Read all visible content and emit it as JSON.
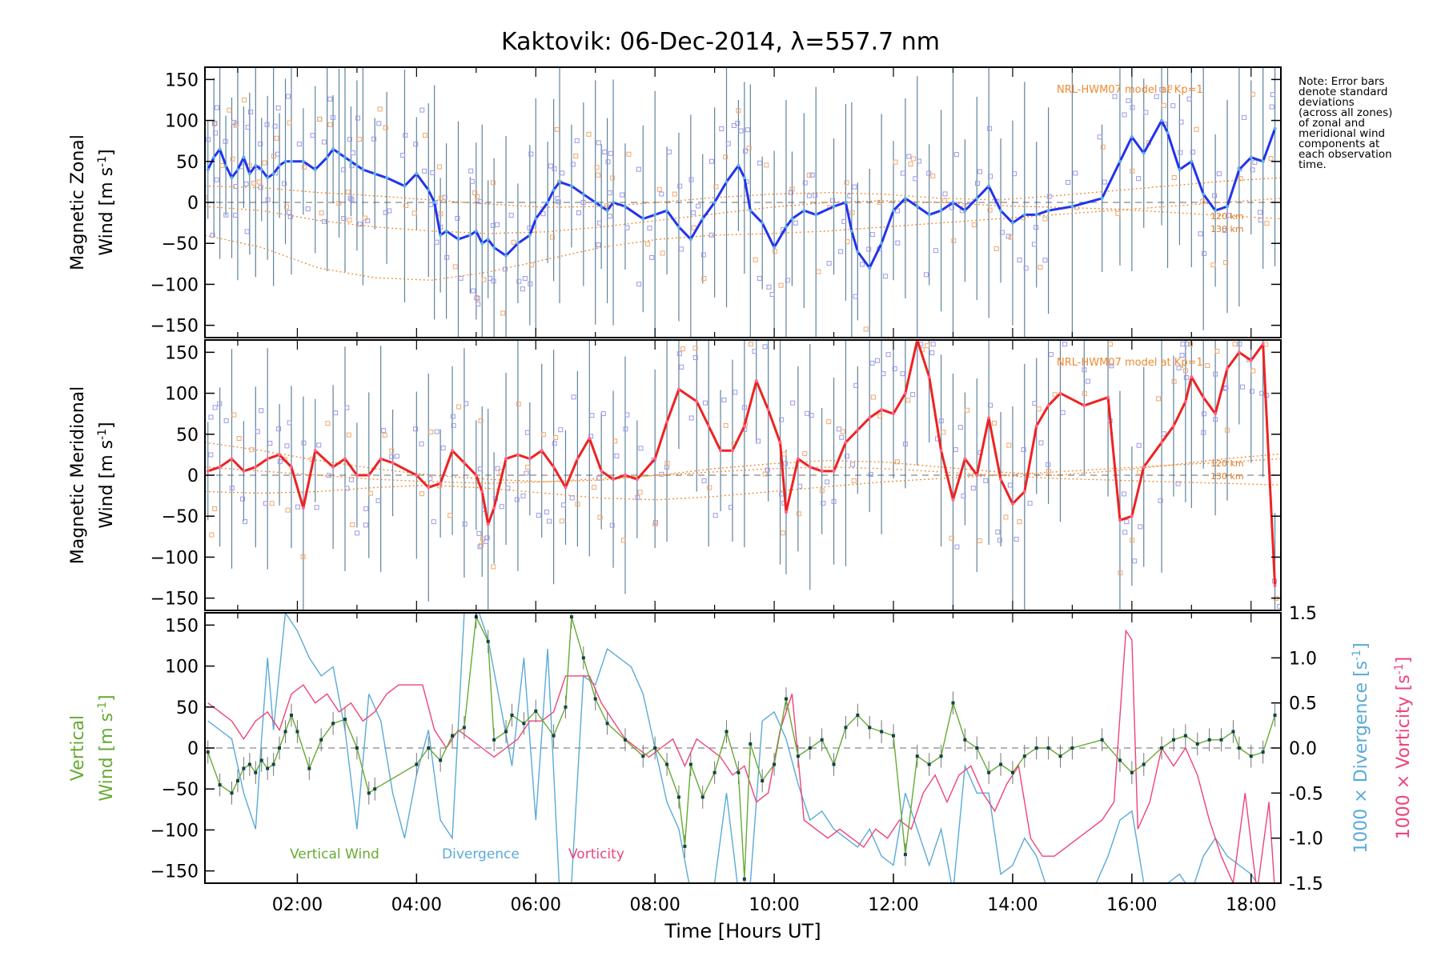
{
  "title": "Kaktovik: 06-Dec-2014, λ=557.7 nm",
  "note_lines": [
    "Note: Error bars",
    "denote standard",
    "deviations",
    "(across all zones)",
    "of zonal and",
    "meridional wind",
    "components at",
    "each observation",
    "time."
  ],
  "chart_data": [
    {
      "type": "line",
      "name": "zonal",
      "ylabel_line1": "Magnetic Zonal",
      "ylabel_line2": "Wind",
      "ylabel_units": "[m s",
      "ylabel_sup": "-1",
      "ylabel_close": "]",
      "ylim": [
        -165,
        165
      ],
      "yticks": [
        150,
        100,
        50,
        0,
        -50,
        -100,
        -150
      ],
      "model_label": "NRL-HWM07 model at Kp=1",
      "model_altitudes": [
        "120 km",
        "130 km"
      ],
      "color": "#2233ee",
      "x": [
        0.5,
        0.6,
        0.7,
        0.8,
        0.9,
        1.0,
        1.1,
        1.2,
        1.3,
        1.4,
        1.5,
        1.6,
        1.7,
        1.8,
        1.9,
        2.1,
        2.3,
        2.5,
        2.6,
        2.7,
        2.8,
        2.9,
        3.0,
        3.1,
        3.3,
        3.5,
        3.8,
        4.0,
        4.2,
        4.3,
        4.4,
        4.5,
        4.7,
        4.9,
        5.0,
        5.1,
        5.2,
        5.3,
        5.5,
        5.7,
        5.9,
        6.0,
        6.2,
        6.3,
        6.4,
        6.6,
        6.8,
        7.0,
        7.1,
        7.2,
        7.3,
        7.5,
        7.8,
        8.0,
        8.2,
        8.4,
        8.6,
        8.8,
        9.0,
        9.2,
        9.4,
        9.5,
        9.6,
        9.8,
        10.0,
        10.2,
        10.3,
        10.5,
        10.7,
        11.0,
        11.2,
        11.3,
        11.4,
        11.6,
        11.8,
        12.0,
        12.2,
        12.4,
        12.6,
        12.8,
        13.0,
        13.2,
        13.4,
        13.6,
        13.8,
        14.0,
        14.2,
        14.4,
        14.6,
        15.0,
        15.5,
        15.8,
        16.0,
        16.2,
        16.5,
        16.6,
        16.8,
        17.0,
        17.2,
        17.4,
        17.6,
        17.8,
        18.0,
        18.2,
        18.4
      ],
      "values": [
        40,
        55,
        65,
        45,
        30,
        40,
        55,
        35,
        45,
        40,
        30,
        35,
        45,
        50,
        50,
        50,
        40,
        55,
        65,
        60,
        55,
        50,
        45,
        40,
        35,
        30,
        20,
        35,
        15,
        0,
        -40,
        -35,
        -45,
        -40,
        -35,
        -50,
        -45,
        -55,
        -65,
        -50,
        -40,
        -20,
        0,
        15,
        25,
        20,
        10,
        0,
        -5,
        -10,
        0,
        -5,
        -20,
        -15,
        -10,
        -30,
        -45,
        -20,
        0,
        25,
        45,
        30,
        -10,
        -25,
        -55,
        -30,
        -20,
        -10,
        -15,
        -5,
        0,
        -35,
        -60,
        -80,
        -50,
        -10,
        5,
        -5,
        -15,
        -10,
        0,
        -10,
        5,
        20,
        -10,
        -25,
        -15,
        -15,
        -10,
        -5,
        5,
        50,
        80,
        60,
        100,
        85,
        40,
        50,
        10,
        -10,
        -5,
        40,
        55,
        50,
        90
      ],
      "model_curves": [
        [
          20,
          18,
          12,
          8,
          3,
          -2,
          -6,
          -5,
          0,
          6,
          10,
          12,
          10,
          5,
          3,
          8,
          14,
          20,
          26,
          30
        ],
        [
          -5,
          -10,
          -22,
          -30,
          -35,
          -38,
          -36,
          -30,
          -22,
          -14,
          -6,
          0,
          2,
          0,
          -4,
          -6,
          -8,
          -12,
          -16,
          -20
        ],
        [
          -40,
          -55,
          -80,
          -92,
          -95,
          -85,
          -70,
          -55,
          -45,
          -40,
          -38,
          -35,
          -30,
          -25,
          -20,
          -15,
          -10,
          -5,
          0,
          5
        ]
      ]
    },
    {
      "type": "line",
      "name": "meridional",
      "ylabel_line1": "Magnetic Meridional",
      "ylabel_line2": "Wind",
      "ylabel_units": "[m s",
      "ylabel_sup": "-1",
      "ylabel_close": "]",
      "ylim": [
        -165,
        165
      ],
      "yticks": [
        150,
        100,
        50,
        0,
        -50,
        -100,
        -150
      ],
      "model_label": "NRL-HWM07 model at Kp=1",
      "model_altitudes": [
        "120 km",
        "130 km"
      ],
      "color": "#ee2222",
      "x": [
        0.5,
        0.7,
        0.9,
        1.1,
        1.3,
        1.5,
        1.7,
        1.9,
        2.1,
        2.3,
        2.6,
        2.8,
        3.0,
        3.2,
        3.4,
        3.6,
        4.0,
        4.2,
        4.4,
        4.6,
        4.8,
        5.0,
        5.1,
        5.2,
        5.3,
        5.5,
        5.7,
        5.9,
        6.1,
        6.3,
        6.5,
        6.7,
        6.9,
        7.1,
        7.3,
        7.5,
        7.7,
        8.0,
        8.2,
        8.4,
        8.7,
        8.9,
        9.1,
        9.3,
        9.5,
        9.7,
        9.9,
        10.1,
        10.2,
        10.4,
        10.6,
        10.8,
        11.0,
        11.2,
        11.4,
        11.6,
        11.8,
        12.0,
        12.2,
        12.4,
        12.6,
        12.8,
        13.0,
        13.2,
        13.4,
        13.6,
        13.8,
        14.0,
        14.2,
        14.4,
        14.6,
        14.8,
        15.2,
        15.6,
        15.8,
        16.0,
        16.2,
        16.5,
        16.7,
        16.9,
        17.0,
        17.2,
        17.4,
        17.6,
        17.8,
        18.0,
        18.2,
        18.4
      ],
      "values": [
        5,
        10,
        20,
        5,
        10,
        20,
        25,
        10,
        -40,
        30,
        10,
        20,
        0,
        0,
        20,
        15,
        0,
        -15,
        -10,
        30,
        15,
        0,
        -20,
        -60,
        -40,
        20,
        25,
        20,
        30,
        10,
        -15,
        20,
        45,
        5,
        -5,
        0,
        -5,
        20,
        65,
        105,
        90,
        60,
        30,
        30,
        60,
        115,
        80,
        40,
        -45,
        20,
        10,
        5,
        5,
        40,
        55,
        70,
        80,
        75,
        100,
        165,
        120,
        30,
        -30,
        20,
        0,
        70,
        -5,
        -35,
        -20,
        60,
        85,
        100,
        85,
        95,
        -55,
        -50,
        10,
        40,
        60,
        90,
        120,
        95,
        75,
        130,
        150,
        140,
        160,
        -135
      ],
      "model_curves": [
        [
          40,
          30,
          18,
          8,
          0,
          -5,
          -8,
          -6,
          0,
          8,
          14,
          18,
          16,
          10,
          4,
          0,
          5,
          12,
          20,
          26
        ],
        [
          10,
          5,
          0,
          -5,
          -8,
          -10,
          -8,
          -4,
          0,
          4,
          8,
          10,
          8,
          4,
          0,
          -4,
          -6,
          -8,
          -10,
          -12
        ],
        [
          -20,
          -22,
          -20,
          -15,
          -12,
          -16,
          -22,
          -28,
          -30,
          -26,
          -20,
          -14,
          -8,
          -4,
          0,
          4,
          8,
          12,
          16,
          20
        ]
      ]
    },
    {
      "type": "line",
      "name": "vertical",
      "ylabel_line1": "Vertical",
      "ylabel_line2": "Wind",
      "ylabel_units": "[m s",
      "ylabel_sup": "-1",
      "ylabel_close": "]",
      "ylim": [
        -165,
        165
      ],
      "yticks": [
        150,
        100,
        50,
        0,
        -50,
        -100,
        -150
      ],
      "y2_label_div": "1000 × Divergence [s",
      "y2_label_vor": "1000 × Vorticity [s",
      "y2_sup": "-1",
      "y2_close": "]",
      "y2lim": [
        -1.5,
        1.5
      ],
      "y2ticks": [
        "1.5",
        "1.0",
        "0.5",
        "0.0",
        "-0.5",
        "-1.0",
        "-1.5"
      ],
      "xlabel": "Time [Hours UT]",
      "xlim": [
        0.45,
        18.5
      ],
      "xticks": [
        "02:00",
        "04:00",
        "06:00",
        "08:00",
        "10:00",
        "12:00",
        "14:00",
        "16:00",
        "18:00"
      ],
      "legend": [
        "Vertical Wind",
        "Divergence",
        "Vorticity"
      ],
      "colors": {
        "vertical": "#66aa33",
        "divergence": "#5aaad8",
        "vorticity": "#ee4477"
      },
      "vertical": {
        "x": [
          0.5,
          0.7,
          0.9,
          1.0,
          1.1,
          1.2,
          1.3,
          1.4,
          1.5,
          1.6,
          1.7,
          1.8,
          1.9,
          2.0,
          2.2,
          2.4,
          2.6,
          2.8,
          3.0,
          3.2,
          3.3,
          4.0,
          4.2,
          4.4,
          4.6,
          4.8,
          5.0,
          5.2,
          5.3,
          5.5,
          5.6,
          5.8,
          6.0,
          6.3,
          6.5,
          6.6,
          6.8,
          7.0,
          7.2,
          7.5,
          7.8,
          8.0,
          8.2,
          8.4,
          8.5,
          8.6,
          8.8,
          9.0,
          9.2,
          9.4,
          9.5,
          9.6,
          9.8,
          10.0,
          10.2,
          10.4,
          10.6,
          10.8,
          11.0,
          11.2,
          11.4,
          11.6,
          11.8,
          12.0,
          12.2,
          12.4,
          12.6,
          12.8,
          13.0,
          13.2,
          13.4,
          13.6,
          13.8,
          14.0,
          14.2,
          14.4,
          14.6,
          14.8,
          15.0,
          15.5,
          15.8,
          16.0,
          16.2,
          16.5,
          16.7,
          16.9,
          17.1,
          17.3,
          17.5,
          17.7,
          17.8,
          18.0,
          18.2,
          18.4
        ],
        "values": [
          -5,
          -45,
          -55,
          -40,
          -25,
          -20,
          -30,
          -15,
          -25,
          -20,
          0,
          20,
          40,
          20,
          -25,
          10,
          30,
          35,
          0,
          -55,
          -50,
          -20,
          0,
          -15,
          15,
          25,
          160,
          130,
          10,
          20,
          40,
          30,
          45,
          15,
          50,
          160,
          110,
          60,
          30,
          10,
          -10,
          0,
          -20,
          -60,
          -120,
          -20,
          -60,
          -30,
          20,
          -30,
          -160,
          5,
          -40,
          -20,
          60,
          -10,
          0,
          10,
          -20,
          25,
          40,
          25,
          20,
          15,
          -130,
          -10,
          -20,
          -10,
          55,
          10,
          0,
          -30,
          -20,
          -30,
          -10,
          0,
          0,
          -10,
          0,
          10,
          -15,
          -30,
          -20,
          0,
          10,
          15,
          5,
          10,
          10,
          20,
          0,
          -10,
          -5,
          40
        ]
      },
      "divergence": {
        "x": [
          0.5,
          0.7,
          0.9,
          1.1,
          1.3,
          1.4,
          1.5,
          1.6,
          1.8,
          2.0,
          2.2,
          2.4,
          2.6,
          2.8,
          3.0,
          3.2,
          3.4,
          3.6,
          3.8,
          4.0,
          4.2,
          4.4,
          4.6,
          4.8,
          5.0,
          5.2,
          5.4,
          5.6,
          5.8,
          6.0,
          6.2,
          6.4,
          6.6,
          6.8,
          7.0,
          7.2,
          7.4,
          7.6,
          7.8,
          8.0,
          8.2,
          8.4,
          8.6,
          8.8,
          9.0,
          9.2,
          9.4,
          9.6,
          9.8,
          10.0,
          10.2,
          10.4,
          10.6,
          10.8,
          11.0,
          11.2,
          11.4,
          11.6,
          11.8,
          12.0,
          12.2,
          12.4,
          12.6,
          12.8,
          13.0,
          13.2,
          13.4,
          13.6,
          13.8,
          14.0,
          14.2,
          14.4,
          14.6,
          15.0,
          15.4,
          15.6,
          15.8,
          16.0,
          16.2,
          16.4,
          16.6,
          16.8,
          17.0,
          17.2,
          17.4,
          17.6,
          17.8,
          18.0,
          18.2,
          18.4
        ],
        "values": [
          0.3,
          0.2,
          0.1,
          -0.5,
          -0.9,
          0.1,
          1.0,
          0.2,
          1.5,
          1.3,
          1.0,
          0.8,
          0.9,
          0.2,
          -0.9,
          0.6,
          0.3,
          -0.5,
          -1.0,
          -0.3,
          0.2,
          -0.8,
          -1.0,
          1.5,
          1.6,
          1.2,
          0.5,
          -0.2,
          1.0,
          -0.8,
          1.1,
          -1.6,
          -1.5,
          0.8,
          0.7,
          1.1,
          1.0,
          0.9,
          0.6,
          0.0,
          -0.6,
          -0.9,
          -1.6,
          -1.6,
          -1.5,
          -0.5,
          -1.6,
          -1.5,
          0.3,
          0.4,
          0.1,
          -0.4,
          -0.8,
          -0.7,
          -0.9,
          -1.0,
          -1.1,
          -0.9,
          -1.2,
          -1.3,
          -0.5,
          -0.9,
          -1.3,
          -0.9,
          -1.6,
          -0.2,
          -0.5,
          -0.5,
          -1.4,
          -1.3,
          -1.0,
          -1.2,
          -1.6,
          -1.6,
          -1.5,
          -1.2,
          -0.8,
          -0.7,
          -1.5,
          -1.6,
          -1.5,
          -1.4,
          -1.6,
          -1.2,
          -1.0,
          -1.2,
          -1.3,
          -1.4,
          -1.6,
          -1.6
        ]
      },
      "vorticity": {
        "x": [
          0.5,
          0.7,
          0.9,
          1.1,
          1.3,
          1.5,
          1.7,
          1.9,
          2.1,
          2.3,
          2.5,
          2.7,
          2.9,
          3.1,
          3.3,
          3.5,
          3.7,
          3.9,
          4.1,
          4.3,
          4.5,
          4.7,
          4.9,
          5.1,
          5.3,
          5.5,
          5.7,
          5.9,
          6.1,
          6.3,
          6.5,
          6.7,
          6.9,
          7.1,
          7.3,
          7.5,
          7.7,
          7.9,
          8.1,
          8.3,
          8.5,
          8.7,
          8.9,
          9.1,
          9.3,
          9.5,
          9.7,
          9.9,
          10.1,
          10.3,
          10.5,
          10.7,
          10.9,
          11.1,
          11.3,
          11.5,
          11.7,
          11.9,
          12.1,
          12.3,
          12.5,
          12.7,
          12.9,
          13.1,
          13.3,
          13.5,
          13.7,
          13.9,
          14.1,
          14.3,
          14.5,
          14.7,
          14.9,
          15.1,
          15.3,
          15.5,
          15.7,
          15.9,
          16.0,
          16.1,
          16.3,
          16.5,
          16.7,
          16.9,
          17.1,
          17.3,
          17.5,
          17.7,
          17.9,
          18.1,
          18.3,
          18.4
        ],
        "values": [
          0.5,
          0.4,
          0.3,
          0.1,
          0.3,
          0.4,
          0.2,
          0.6,
          0.7,
          0.5,
          0.6,
          0.4,
          0.5,
          0.3,
          0.4,
          0.6,
          0.7,
          0.7,
          0.7,
          0.2,
          0.0,
          0.2,
          0.1,
          0.0,
          -0.1,
          0.0,
          0.1,
          0.3,
          0.3,
          0.4,
          0.8,
          0.8,
          0.8,
          0.5,
          0.3,
          0.1,
          0.0,
          -0.1,
          0.0,
          0.1,
          -0.2,
          0.1,
          0.0,
          -0.1,
          -0.3,
          -0.2,
          -0.6,
          -0.5,
          0.2,
          0.6,
          -0.8,
          -0.9,
          -1.0,
          -0.9,
          -1.0,
          -1.1,
          -0.9,
          -1.0,
          -0.8,
          -0.9,
          -0.5,
          -0.3,
          -0.6,
          -0.3,
          -0.2,
          -0.5,
          -0.7,
          -0.4,
          -0.2,
          -1.0,
          -1.2,
          -1.2,
          -1.1,
          -1.0,
          -0.9,
          -0.8,
          -0.6,
          1.3,
          1.2,
          -0.9,
          -0.6,
          0.0,
          -0.2,
          0.0,
          -0.3,
          -0.8,
          -1.2,
          -1.5,
          -0.5,
          -1.6,
          -0.6,
          -1.6
        ]
      }
    }
  ]
}
